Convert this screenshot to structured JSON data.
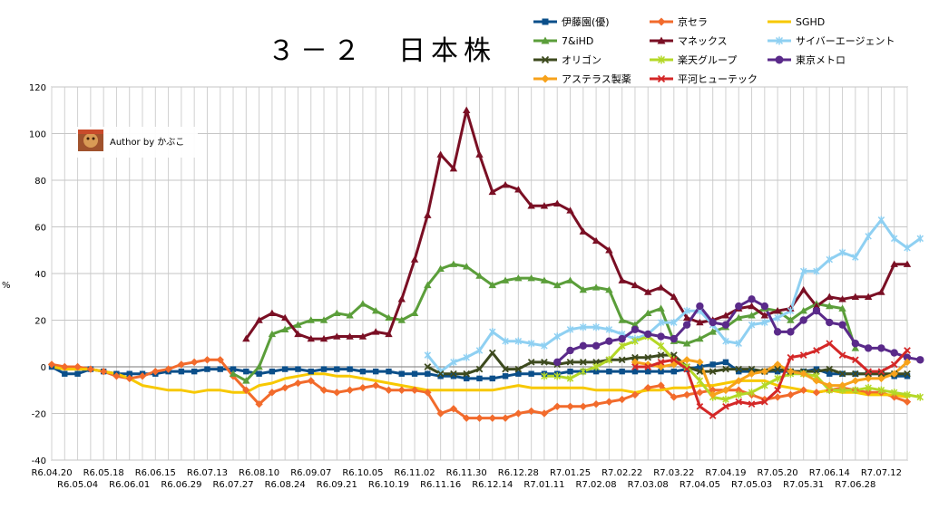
{
  "chart_data": {
    "type": "line",
    "title": "３－２　日本株",
    "ylabel": "%",
    "ylim": [
      -40,
      120
    ],
    "yticks": [
      -40,
      -20,
      0,
      20,
      40,
      60,
      80,
      100,
      120
    ],
    "grid": true,
    "legend_position": "top-right",
    "watermark": "Author by かぶこ",
    "x_upper_labels": [
      "R6.04.20",
      "R6.05.18",
      "R6.06.15",
      "R6.07.13",
      "R6.08.10",
      "R6.09.07",
      "R6.10.05",
      "R6.11.02",
      "R6.11.30",
      "R6.12.28",
      "R7.01.25",
      "R7.02.22",
      "R7.03.22",
      "R7.04.19",
      "R7.05.20",
      "R7.06.14",
      "R7.07.12"
    ],
    "x_lower_labels": [
      "R6.05.04",
      "R6.06.01",
      "R6.06.29",
      "R6.07.27",
      "R6.08.24",
      "R6.09.21",
      "R6.10.19",
      "R6.11.16",
      "R6.12.14",
      "R7.01.11",
      "R7.02.08",
      "R7.03.08",
      "R7.04.05",
      "R7.05.03",
      "R7.05.31",
      "R7.06.28"
    ],
    "n_points": 67,
    "series": [
      {
        "name": "伊藤園(優)",
        "color": "#0b4f8a",
        "marker": "square",
        "start": 0,
        "values": [
          0,
          -3,
          -3,
          -1,
          -2,
          -3,
          -3,
          -3,
          -3,
          -2,
          -2,
          -2,
          -1,
          -1,
          -1,
          -2,
          -3,
          -2,
          -1,
          -1,
          -2,
          -1,
          -1,
          -1,
          -2,
          -2,
          -2,
          -3,
          -3,
          -3,
          -4,
          -4,
          -5,
          -5,
          -5,
          -4,
          -3,
          -3,
          -3,
          -3,
          -2,
          -2,
          -2,
          -2,
          -2,
          -2,
          -2,
          -2,
          -2,
          -1,
          0,
          1,
          2,
          -2,
          -2,
          -2,
          -2,
          -2,
          -2,
          -1,
          -3,
          -3,
          -3,
          -3,
          -3,
          -4,
          -4
        ]
      },
      {
        "name": "京セラ",
        "color": "#f26b2c",
        "marker": "diamond",
        "start": 0,
        "values": [
          1,
          0,
          0,
          -1,
          -2,
          -4,
          -5,
          -4,
          -2,
          -1,
          1,
          2,
          3,
          3,
          -4,
          -10,
          -16,
          -11,
          -9,
          -7,
          -6,
          -10,
          -11,
          -10,
          -9,
          -8,
          -10,
          -10,
          -10,
          -11,
          -20,
          -18,
          -22,
          -22,
          -22,
          -22,
          -20,
          -19,
          -20,
          -17,
          -17,
          -17,
          -16,
          -15,
          -14,
          -12,
          -9,
          -8,
          -13,
          -12,
          -11,
          -10,
          -10,
          -10,
          -12,
          -14,
          -13,
          -12,
          -10,
          -11,
          -10,
          -9,
          -10,
          -11,
          -11,
          -13,
          -15
        ]
      },
      {
        "name": "SGHD",
        "color": "#f7c800",
        "marker": "none",
        "start": 0,
        "values": [
          0,
          -1,
          -1,
          -1,
          -2,
          -3,
          -5,
          -8,
          -9,
          -10,
          -10,
          -11,
          -10,
          -10,
          -11,
          -11,
          -8,
          -7,
          -5,
          -4,
          -3,
          -3,
          -4,
          -4,
          -5,
          -6,
          -7,
          -8,
          -9,
          -10,
          -10,
          -10,
          -10,
          -10,
          -10,
          -9,
          -8,
          -9,
          -9,
          -9,
          -9,
          -9,
          -10,
          -10,
          -10,
          -11,
          -10,
          -10,
          -9,
          -9,
          -8,
          -8,
          -7,
          -6,
          -6,
          -6,
          -8,
          -9,
          -10,
          -11,
          -10,
          -11,
          -11,
          -12,
          -12,
          -12,
          -13
        ]
      },
      {
        "name": "7&iHD",
        "color": "#5b9e3a",
        "marker": "triangle",
        "start": 14,
        "values": [
          -3,
          -6,
          0,
          14,
          16,
          18,
          20,
          20,
          23,
          22,
          27,
          24,
          21,
          20,
          23,
          35,
          42,
          44,
          43,
          39,
          35,
          37,
          38,
          38,
          37,
          35,
          37,
          33,
          34,
          33,
          20,
          18,
          23,
          25,
          11,
          10,
          12,
          15,
          17,
          21,
          22,
          25,
          24,
          20,
          24,
          27,
          26,
          25,
          8
        ]
      },
      {
        "name": "マネックス",
        "color": "#7a0f24",
        "marker": "triangle",
        "start": 15,
        "values": [
          12,
          20,
          23,
          21,
          14,
          12,
          12,
          13,
          13,
          13,
          15,
          14,
          29,
          46,
          65,
          91,
          85,
          110,
          91,
          75,
          78,
          76,
          69,
          69,
          70,
          67,
          58,
          54,
          50,
          37,
          35,
          32,
          34,
          30,
          21,
          19,
          20,
          22,
          25,
          26,
          22,
          24,
          25,
          33,
          26,
          30,
          29,
          30,
          30,
          32,
          44,
          44
        ]
      },
      {
        "name": "サイバーエージェント",
        "color": "#8fd0f2",
        "marker": "star",
        "start": 29,
        "values": [
          5,
          -2,
          2,
          4,
          7,
          15,
          11,
          11,
          10,
          9,
          13,
          16,
          17,
          17,
          16,
          14,
          12,
          14,
          19,
          19,
          24,
          24,
          18,
          11,
          10,
          18,
          19,
          21,
          24,
          41,
          41,
          46,
          49,
          47,
          56,
          63,
          55,
          51,
          55
        ]
      },
      {
        "name": "オリゴン",
        "color": "#3d4a1e",
        "marker": "x",
        "start": 29,
        "values": [
          0,
          -3,
          -3,
          -3,
          -1,
          6,
          -1,
          -1,
          2,
          2,
          1,
          2,
          2,
          2,
          3,
          3,
          4,
          4,
          5,
          5,
          0,
          -2,
          -2,
          -1,
          -1,
          -1,
          -2,
          -1,
          -2,
          -2,
          -2,
          -1,
          -3,
          -3,
          -3,
          -3,
          -3,
          -3
        ]
      },
      {
        "name": "楽天グループ",
        "color": "#b4d827",
        "marker": "star",
        "start": 38,
        "values": [
          -4,
          -4,
          -5,
          -2,
          0,
          3,
          9,
          11,
          13,
          9,
          3,
          0,
          -6,
          -13,
          -14,
          -12,
          -11,
          -8,
          -5,
          -3,
          -3,
          -4,
          -10,
          -10,
          -10,
          -9,
          -10,
          -11,
          -12,
          -13
        ]
      },
      {
        "name": "東京メトロ",
        "color": "#5a2a8a",
        "marker": "circle",
        "start": 39,
        "values": [
          2,
          7,
          9,
          9,
          11,
          12,
          16,
          14,
          13,
          12,
          18,
          26,
          19,
          18,
          26,
          29,
          26,
          15,
          15,
          20,
          24,
          19,
          18,
          10,
          8,
          8,
          6,
          4,
          3
        ]
      },
      {
        "name": "アステラス製薬",
        "color": "#f7a21b",
        "marker": "diamond",
        "start": 45,
        "values": [
          2,
          1,
          0,
          1,
          3,
          2,
          -12,
          -10,
          -6,
          -3,
          -2,
          1,
          -2,
          -3,
          -6,
          -8,
          -8,
          -6,
          -5,
          -5,
          -3,
          2
        ]
      },
      {
        "name": "平河ヒューテック",
        "color": "#d42727",
        "marker": "x",
        "start": 45,
        "values": [
          0,
          0,
          2,
          3,
          -1,
          -17,
          -21,
          -17,
          -15,
          -16,
          -15,
          -10,
          4,
          5,
          7,
          10,
          5,
          3,
          -2,
          -2,
          1,
          7
        ]
      }
    ]
  }
}
